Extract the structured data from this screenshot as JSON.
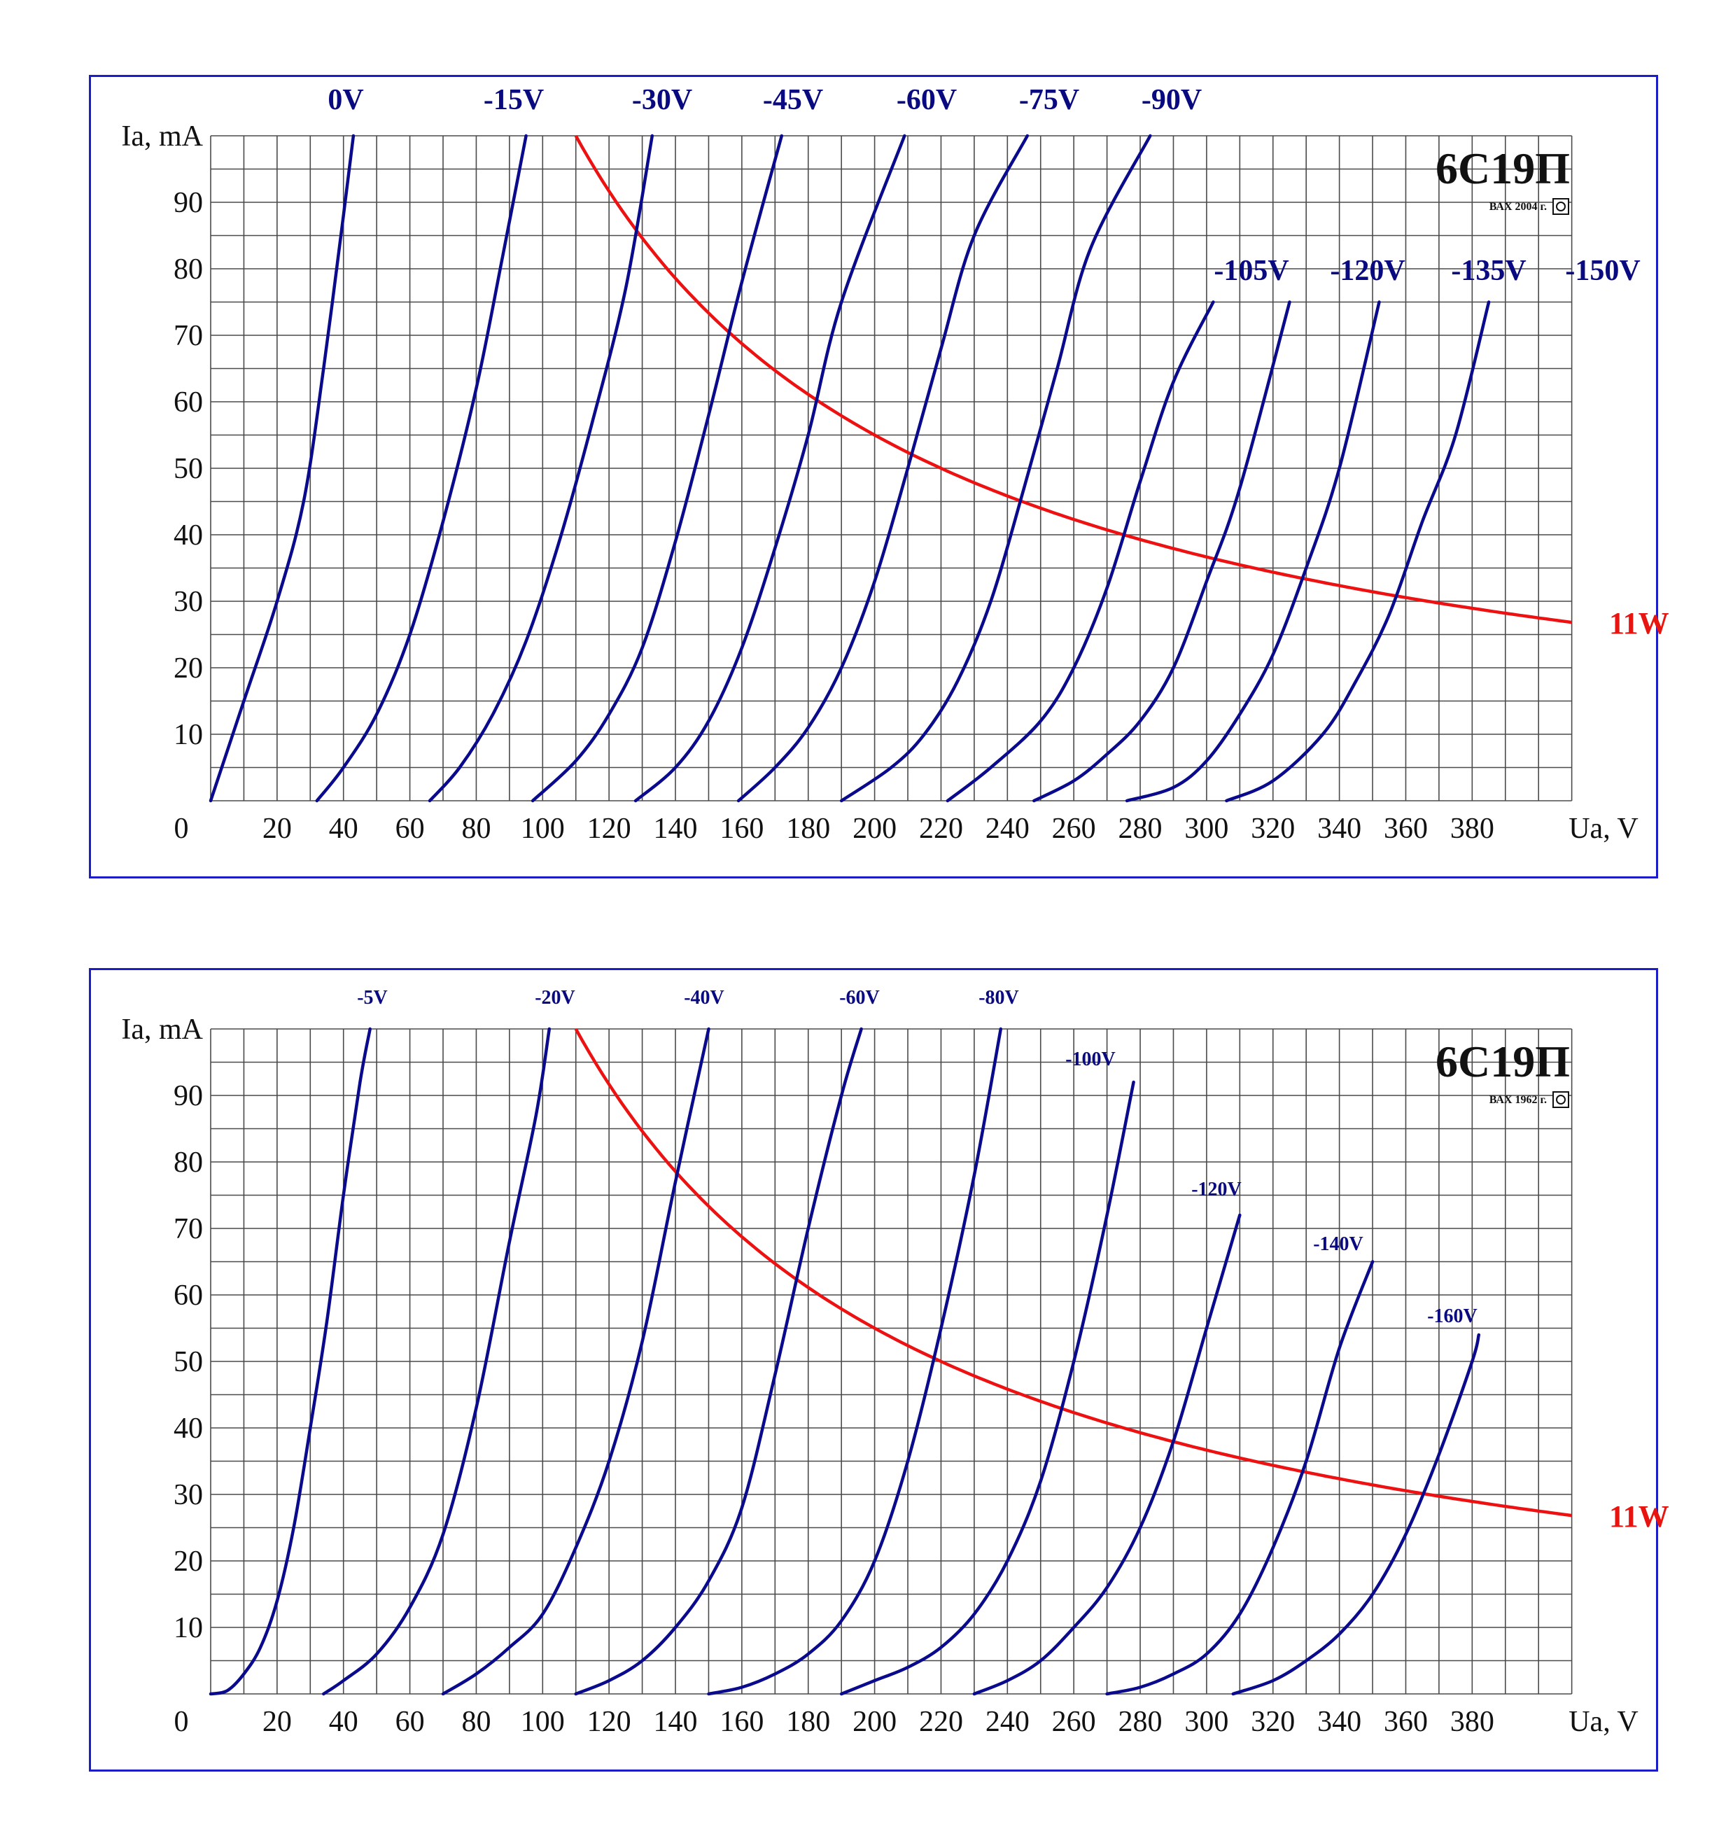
{
  "chart_data": [
    {
      "type": "line",
      "title": "6С19П",
      "caption": "ВАХ 2004 г.",
      "xlabel": "Ua, V",
      "ylabel": "Ia, mA",
      "zero_label": "0",
      "xlim": [
        0,
        410
      ],
      "ylim": [
        0,
        100
      ],
      "x_ticks": [
        20,
        40,
        60,
        80,
        100,
        120,
        140,
        160,
        180,
        200,
        220,
        240,
        260,
        280,
        300,
        320,
        340,
        360,
        380
      ],
      "y_ticks": [
        10,
        20,
        30,
        40,
        50,
        60,
        70,
        80,
        90
      ],
      "grid": true,
      "power_curve": {
        "name": "11W",
        "watts": 11,
        "x_range": [
          110,
          410
        ]
      },
      "series": [
        {
          "name": "0V",
          "points": [
            [
              0,
              0
            ],
            [
              10,
              15
            ],
            [
              20,
              30
            ],
            [
              28,
              45
            ],
            [
              34,
              65
            ],
            [
              40,
              88
            ],
            [
              43,
              100
            ]
          ]
        },
        {
          "name": "-15V",
          "points": [
            [
              32,
              0
            ],
            [
              40,
              5
            ],
            [
              50,
              13
            ],
            [
              60,
              25
            ],
            [
              70,
              42
            ],
            [
              80,
              62
            ],
            [
              88,
              82
            ],
            [
              95,
              100
            ]
          ]
        },
        {
          "name": "-30V",
          "points": [
            [
              66,
              0
            ],
            [
              75,
              5
            ],
            [
              85,
              13
            ],
            [
              95,
              24
            ],
            [
              105,
              39
            ],
            [
              115,
              57
            ],
            [
              125,
              77
            ],
            [
              133,
              100
            ]
          ]
        },
        {
          "name": "-45V",
          "points": [
            [
              97,
              0
            ],
            [
              110,
              6
            ],
            [
              120,
              13
            ],
            [
              130,
              23
            ],
            [
              140,
              39
            ],
            [
              150,
              58
            ],
            [
              160,
              78
            ],
            [
              172,
              100
            ]
          ]
        },
        {
          "name": "-60V",
          "points": [
            [
              128,
              0
            ],
            [
              140,
              5
            ],
            [
              150,
              12
            ],
            [
              160,
              23
            ],
            [
              170,
              38
            ],
            [
              180,
              55
            ],
            [
              190,
              75
            ],
            [
              209,
              100
            ]
          ]
        },
        {
          "name": "-75V",
          "points": [
            [
              159,
              0
            ],
            [
              170,
              5
            ],
            [
              180,
              11
            ],
            [
              190,
              20
            ],
            [
              200,
              33
            ],
            [
              210,
              50
            ],
            [
              220,
              68
            ],
            [
              230,
              85
            ],
            [
              246,
              100
            ]
          ]
        },
        {
          "name": "-90V",
          "points": [
            [
              190,
              0
            ],
            [
              205,
              5
            ],
            [
              215,
              10
            ],
            [
              225,
              18
            ],
            [
              235,
              30
            ],
            [
              245,
              47
            ],
            [
              255,
              65
            ],
            [
              265,
              83
            ],
            [
              283,
              100
            ]
          ]
        },
        {
          "name": "-105V",
          "points": [
            [
              222,
              0
            ],
            [
              235,
              5
            ],
            [
              250,
              12
            ],
            [
              260,
              20
            ],
            [
              270,
              32
            ],
            [
              280,
              48
            ],
            [
              290,
              63
            ],
            [
              302,
              75
            ]
          ]
        },
        {
          "name": "-120V",
          "points": [
            [
              248,
              0
            ],
            [
              260,
              3
            ],
            [
              270,
              7
            ],
            [
              280,
              12
            ],
            [
              290,
              20
            ],
            [
              300,
              33
            ],
            [
              310,
              47
            ],
            [
              325,
              75
            ]
          ]
        },
        {
          "name": "-135V",
          "points": [
            [
              276,
              0
            ],
            [
              290,
              2
            ],
            [
              300,
              6
            ],
            [
              310,
              13
            ],
            [
              320,
              22
            ],
            [
              330,
              35
            ],
            [
              340,
              50
            ],
            [
              352,
              75
            ]
          ]
        },
        {
          "name": "-150V",
          "points": [
            [
              306,
              0
            ],
            [
              320,
              3
            ],
            [
              335,
              10
            ],
            [
              345,
              18
            ],
            [
              355,
              28
            ],
            [
              365,
              42
            ],
            [
              375,
              55
            ],
            [
              385,
              75
            ]
          ]
        }
      ]
    },
    {
      "type": "line",
      "title": "6С19П",
      "caption": "ВАХ 1962 г.",
      "xlabel": "Ua, V",
      "ylabel": "Ia, mA",
      "zero_label": "0",
      "xlim": [
        0,
        410
      ],
      "ylim": [
        0,
        100
      ],
      "x_ticks": [
        20,
        40,
        60,
        80,
        100,
        120,
        140,
        160,
        180,
        200,
        220,
        240,
        260,
        280,
        300,
        320,
        340,
        360,
        380
      ],
      "y_ticks": [
        10,
        20,
        30,
        40,
        50,
        60,
        70,
        80,
        90
      ],
      "grid": true,
      "power_curve": {
        "name": "11W",
        "watts": 11,
        "x_range": [
          110,
          410
        ]
      },
      "series": [
        {
          "name": "-5V",
          "points": [
            [
              0,
              0
            ],
            [
              5,
              0.5
            ],
            [
              10,
              3
            ],
            [
              15,
              7
            ],
            [
              20,
              14
            ],
            [
              25,
              25
            ],
            [
              30,
              40
            ],
            [
              35,
              56
            ],
            [
              40,
              75
            ],
            [
              45,
              92
            ],
            [
              48,
              100
            ]
          ]
        },
        {
          "name": "-20V",
          "points": [
            [
              34,
              0
            ],
            [
              40,
              2
            ],
            [
              50,
              6
            ],
            [
              60,
              13
            ],
            [
              70,
              24
            ],
            [
              80,
              43
            ],
            [
              90,
              68
            ],
            [
              98,
              87
            ],
            [
              102,
              100
            ]
          ]
        },
        {
          "name": "-40V",
          "points": [
            [
              70,
              0
            ],
            [
              80,
              3
            ],
            [
              90,
              7
            ],
            [
              100,
              12
            ],
            [
              110,
              22
            ],
            [
              120,
              35
            ],
            [
              130,
              53
            ],
            [
              140,
              77
            ],
            [
              150,
              100
            ]
          ]
        },
        {
          "name": "-60V",
          "points": [
            [
              110,
              0
            ],
            [
              120,
              2
            ],
            [
              130,
              5
            ],
            [
              140,
              10
            ],
            [
              150,
              17
            ],
            [
              160,
              28
            ],
            [
              170,
              48
            ],
            [
              180,
              70
            ],
            [
              190,
              90
            ],
            [
              196,
              100
            ]
          ]
        },
        {
          "name": "-80V",
          "points": [
            [
              150,
              0
            ],
            [
              160,
              1
            ],
            [
              170,
              3
            ],
            [
              180,
              6
            ],
            [
              190,
              11
            ],
            [
              200,
              20
            ],
            [
              210,
              35
            ],
            [
              220,
              55
            ],
            [
              230,
              78
            ],
            [
              238,
              100
            ]
          ]
        },
        {
          "name": "-100V",
          "points": [
            [
              190,
              0
            ],
            [
              200,
              2
            ],
            [
              210,
              4
            ],
            [
              220,
              7
            ],
            [
              230,
              12
            ],
            [
              240,
              20
            ],
            [
              250,
              32
            ],
            [
              260,
              50
            ],
            [
              270,
              72
            ],
            [
              278,
              92
            ]
          ]
        },
        {
          "name": "-120V",
          "points": [
            [
              230,
              0
            ],
            [
              240,
              2
            ],
            [
              250,
              5
            ],
            [
              260,
              10
            ],
            [
              270,
              16
            ],
            [
              280,
              25
            ],
            [
              290,
              38
            ],
            [
              300,
              55
            ],
            [
              310,
              72
            ]
          ]
        },
        {
          "name": "-140V",
          "points": [
            [
              270,
              0
            ],
            [
              280,
              1
            ],
            [
              290,
              3
            ],
            [
              300,
              6
            ],
            [
              310,
              12
            ],
            [
              320,
              22
            ],
            [
              330,
              35
            ],
            [
              340,
              52
            ],
            [
              350,
              65
            ]
          ]
        },
        {
          "name": "-160V",
          "points": [
            [
              308,
              0
            ],
            [
              320,
              2
            ],
            [
              330,
              5
            ],
            [
              340,
              9
            ],
            [
              350,
              15
            ],
            [
              360,
              24
            ],
            [
              370,
              36
            ],
            [
              380,
              50
            ],
            [
              382,
              54
            ]
          ]
        }
      ]
    }
  ]
}
